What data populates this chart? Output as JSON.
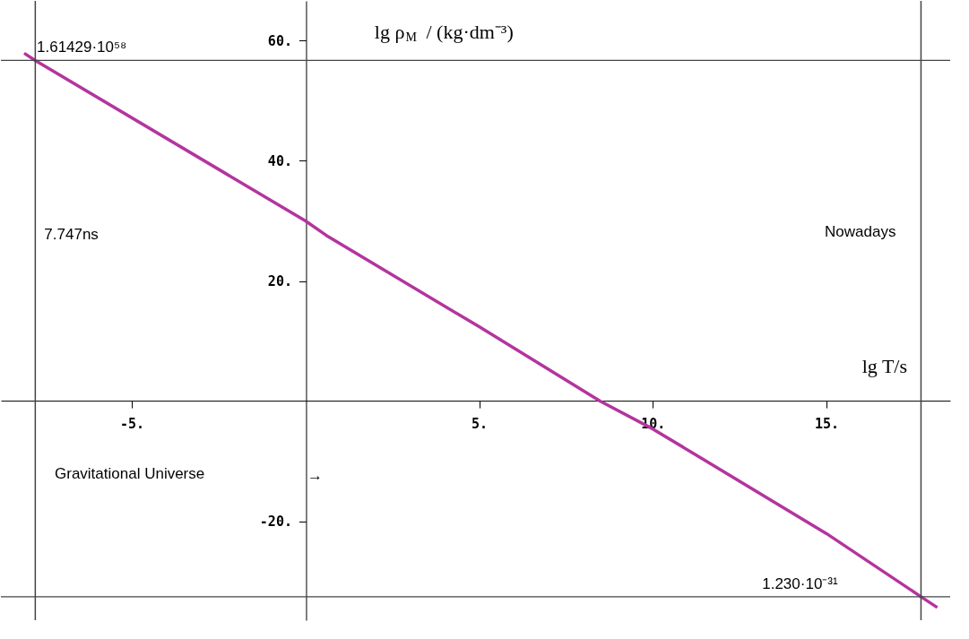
{
  "chart_data": {
    "type": "line",
    "xlabel": "lg T/s",
    "ylabel": "lg ρ$_{M}$ / (kg·dm⁻³)",
    "x": [
      -8.1,
      -7.78,
      0,
      0.6,
      5,
      8.49,
      10,
      15,
      17.72,
      18.19
    ],
    "series": [
      {
        "color": "#b3359e",
        "values": [
          57.9,
          56.7,
          30.0,
          27.6,
          12.4,
          0,
          -4.6,
          -22.0,
          -32.5,
          -34.3
        ]
      }
    ],
    "xlim": [
      -8.77,
      18.56
    ],
    "ylim": [
      -36.4,
      66.6
    ],
    "xticks": [
      {
        "value": -5,
        "label": "-5."
      },
      {
        "value": 5,
        "label": "5."
      },
      {
        "value": 10,
        "label": "10."
      },
      {
        "value": 15,
        "label": "15."
      }
    ],
    "yticks": [
      {
        "value": -20,
        "label": "-20."
      },
      {
        "value": 20,
        "label": "20."
      },
      {
        "value": 40,
        "label": "40."
      },
      {
        "value": 60,
        "label": "60."
      }
    ],
    "ref_lines": [
      {
        "axis": "x",
        "value": -7.78,
        "label": "7.747ns"
      },
      {
        "axis": "x",
        "value": 17.72,
        "label": "Nowadays"
      },
      {
        "axis": "y",
        "value": 56.7,
        "label": "1.61429·10⁵⁸"
      },
      {
        "axis": "y",
        "value": -32.5,
        "label": "1.230·10⁻³¹"
      }
    ],
    "annotations": [
      "Gravitational Universe",
      "→"
    ],
    "grid": false,
    "marker": "none",
    "line_style": "solid"
  }
}
